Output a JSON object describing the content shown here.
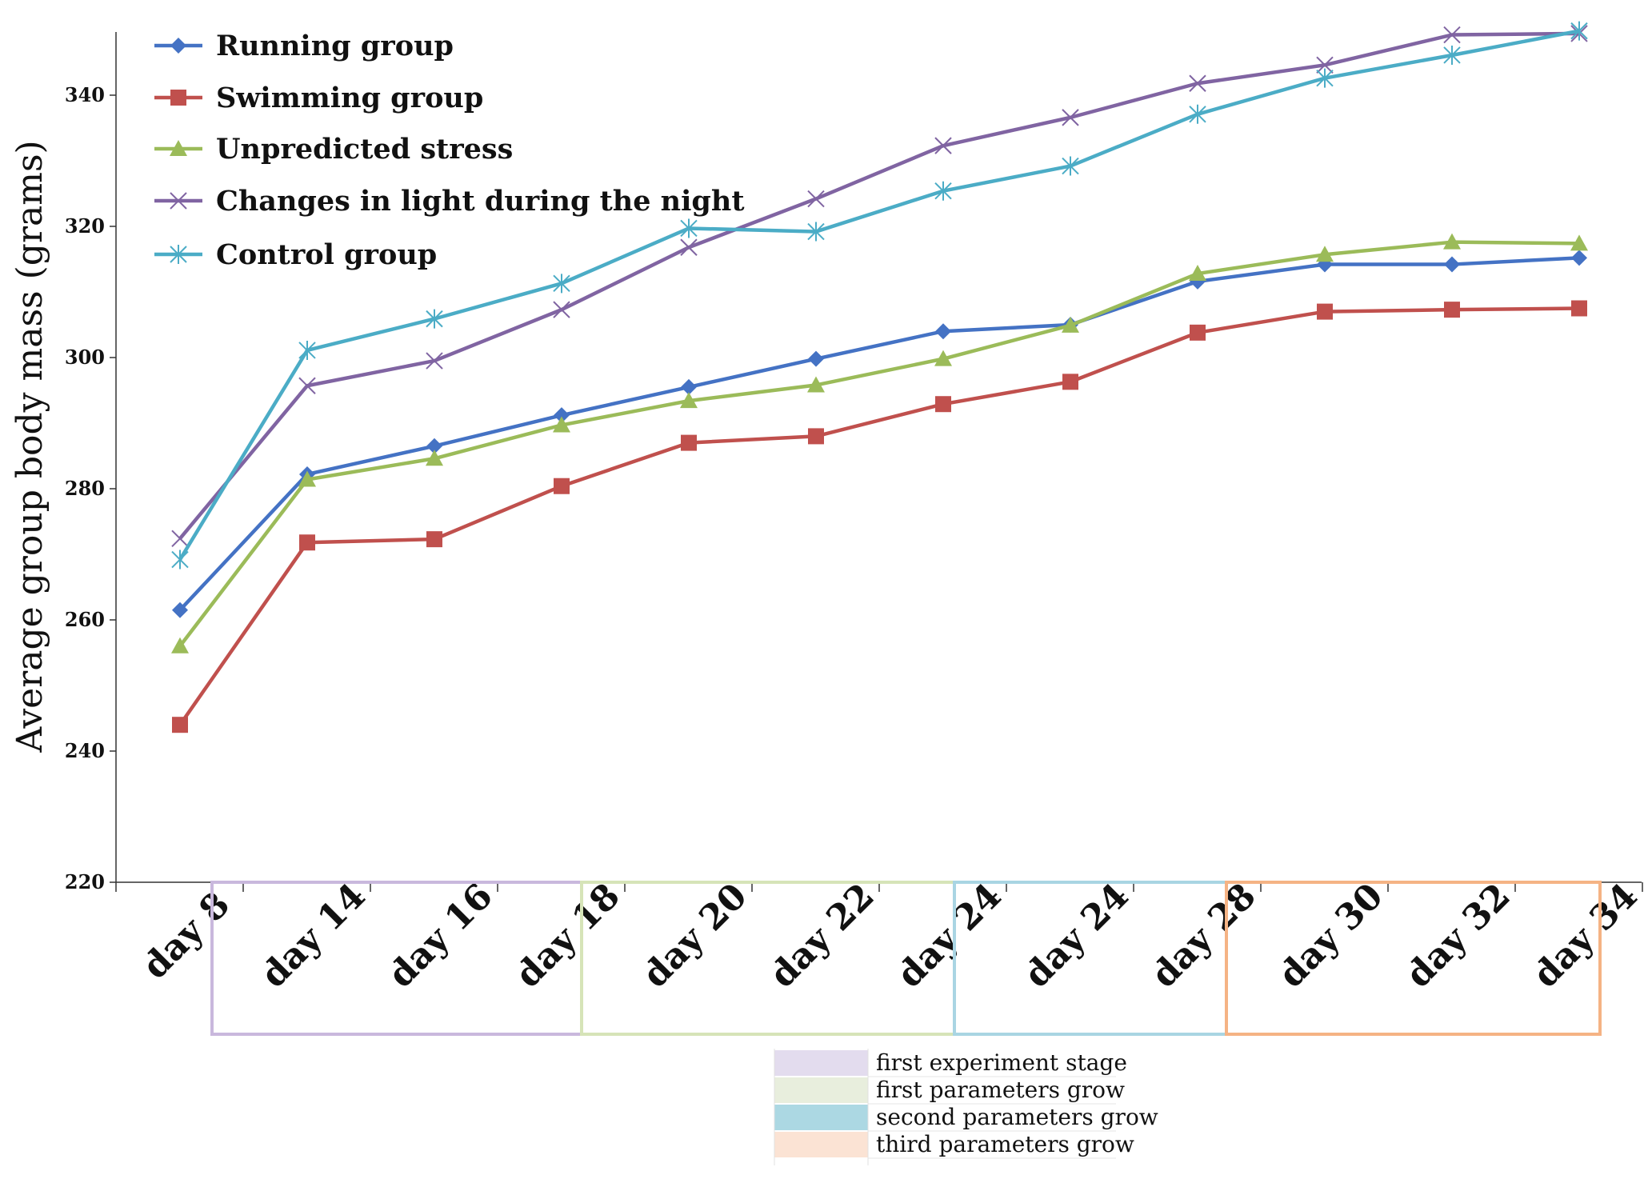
{
  "chart_data": {
    "type": "line",
    "title": "",
    "xlabel": "",
    "ylabel": "Average group body mass (grams)",
    "ylim": [
      220,
      350
    ],
    "yticks": [
      220,
      240,
      260,
      280,
      300,
      320,
      340
    ],
    "grid": false,
    "legend_position": "top-left",
    "categories": [
      "day 8",
      "day 14",
      "day 16",
      "day 18",
      "day 20",
      "day 22",
      "day 24",
      "day 24",
      "day 28",
      "day 30",
      "day 32",
      "day 34"
    ],
    "series": [
      {
        "name": "Running group",
        "color": "#4472c4",
        "marker": "diamond",
        "values": [
          261.5,
          282.2,
          286.5,
          291.2,
          295.5,
          299.8,
          304.0,
          305.0,
          311.6,
          314.2,
          314.2,
          315.2
        ]
      },
      {
        "name": "Swimming group",
        "color": "#c0504d",
        "marker": "square",
        "values": [
          244.0,
          271.8,
          272.3,
          280.4,
          287.0,
          288.0,
          292.9,
          296.3,
          303.8,
          307.0,
          307.3,
          307.5
        ]
      },
      {
        "name": "Unpredicted stress",
        "color": "#9bbb59",
        "marker": "triangle",
        "values": [
          256.0,
          281.4,
          284.6,
          289.7,
          293.4,
          295.8,
          299.8,
          304.9,
          312.8,
          315.7,
          317.6,
          317.4
        ]
      },
      {
        "name": "Changes in light during the night",
        "color": "#8064a2",
        "marker": "x",
        "values": [
          272.4,
          295.7,
          299.5,
          307.3,
          316.8,
          324.2,
          332.3,
          336.6,
          341.8,
          344.6,
          349.2,
          349.4
        ]
      },
      {
        "name": "Control group",
        "color": "#4bacc6",
        "marker": "star",
        "values": [
          269.2,
          301.1,
          305.9,
          311.3,
          319.7,
          319.2,
          325.4,
          329.2,
          337.1,
          342.6,
          346.1,
          349.8
        ]
      }
    ],
    "stages": [
      {
        "label": "first experiment stage",
        "color": "#c9b8dd",
        "swatch": "#e3dcee",
        "from": "day 14",
        "to": "day 18"
      },
      {
        "label": "first parameters grow",
        "color": "#d6e4b8",
        "swatch": "#e8eedd",
        "from": "day 20",
        "to": "day 24"
      },
      {
        "label": "second parameters grow",
        "color": "#a9d5e3",
        "swatch": "#acd8e3",
        "from": "day 24",
        "to": "day 28"
      },
      {
        "label": "third parameters grow",
        "color": "#f5b384",
        "swatch": "#fbe3d4",
        "from": "day 30",
        "to": "day 34"
      }
    ]
  }
}
